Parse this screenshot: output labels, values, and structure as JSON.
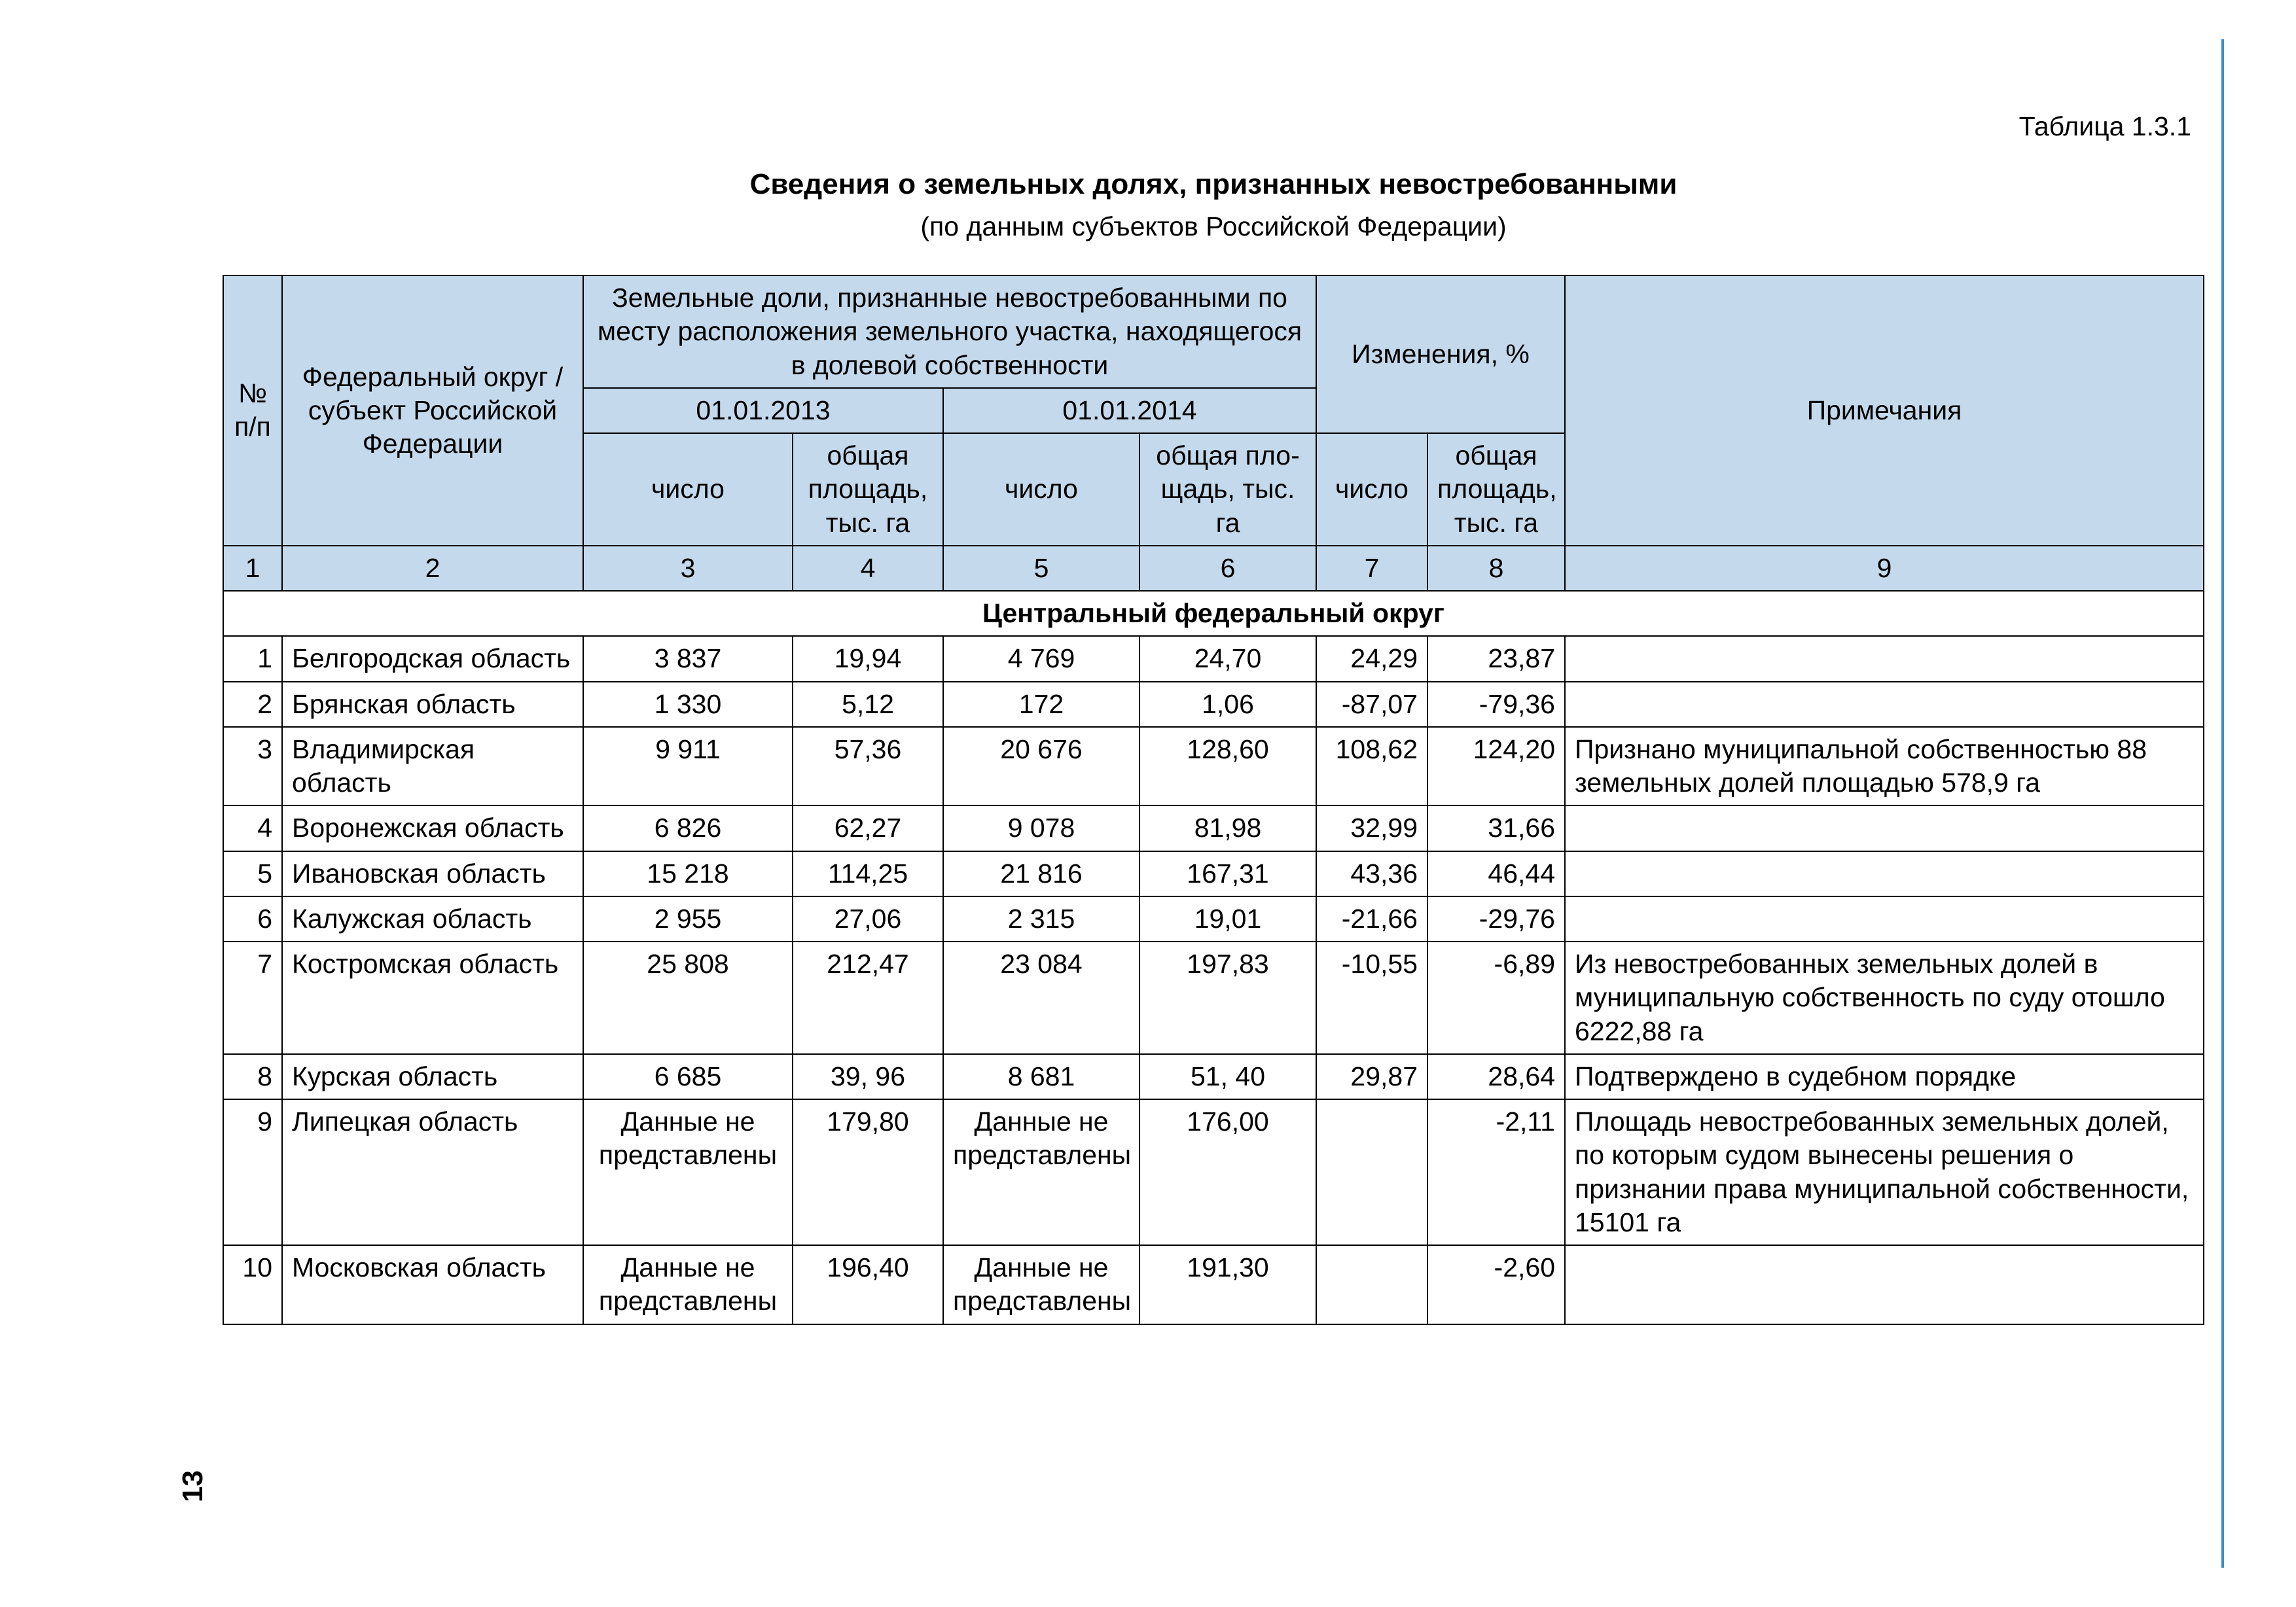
{
  "page_number": "13",
  "table_number_label": "Таблица 1.3.1",
  "title": "Сведения о земельных долях, признанных невостребованными",
  "subtitle": "(по данным субъектов Российской Федерации)",
  "colors": {
    "header_bg": "#c4daec",
    "border": "#000000",
    "text": "#000000",
    "accent_rule": "#3a8fc8",
    "page_bg": "#ffffff"
  },
  "typography": {
    "body_font_size_pt": 18,
    "title_font_size_pt": 19,
    "font_family": "Arial"
  },
  "header": {
    "col_no": "№ п/п",
    "col_region": "Федеральный округ / субъект Российской Федерации",
    "col_shares_group": "Земельные доли, признанные невостребованными по месту расположения земельного участка, находящегося в долевой собственности",
    "col_date_2013": "01.01.2013",
    "col_date_2014": "01.01.2014",
    "col_changes": "Изменения, %",
    "col_notes": "Примечания",
    "sub_count": "число",
    "sub_area": "общая пло­щадь, тыс. га",
    "sub_area2": "общая площадь, тыс. га"
  },
  "column_numbers": [
    "1",
    "2",
    "3",
    "4",
    "5",
    "6",
    "7",
    "8",
    "9"
  ],
  "section_title": "Центральный федеральный округ",
  "rows": [
    {
      "n": "1",
      "region": "Белгородская область",
      "c3": "3 837",
      "c4": "19,94",
      "c5": "4 769",
      "c6": "24,70",
      "c7": "24,29",
      "c8": "23,87",
      "note": ""
    },
    {
      "n": "2",
      "region": "Брянская область",
      "c3": "1 330",
      "c4": "5,12",
      "c5": "172",
      "c6": "1,06",
      "c7": "-87,07",
      "c8": "-79,36",
      "note": ""
    },
    {
      "n": "3",
      "region": "Владимирская область",
      "c3": "9 911",
      "c4": "57,36",
      "c5": "20 676",
      "c6": "128,60",
      "c7": "108,62",
      "c8": "124,20",
      "note": "Признано муниципальной собственностью 88 земель­ных долей площадью 578,9 га"
    },
    {
      "n": "4",
      "region": "Воронежская область",
      "c3": "6 826",
      "c4": "62,27",
      "c5": "9 078",
      "c6": "81,98",
      "c7": "32,99",
      "c8": "31,66",
      "note": ""
    },
    {
      "n": "5",
      "region": "Ивановская область",
      "c3": "15 218",
      "c4": "114,25",
      "c5": "21 816",
      "c6": "167,31",
      "c7": "43,36",
      "c8": "46,44",
      "note": ""
    },
    {
      "n": "6",
      "region": "Калужская область",
      "c3": "2 955",
      "c4": "27,06",
      "c5": "2 315",
      "c6": "19,01",
      "c7": "-21,66",
      "c8": "-29,76",
      "note": ""
    },
    {
      "n": "7",
      "region": "Костромская область",
      "c3": "25 808",
      "c4": "212,47",
      "c5": "23 084",
      "c6": "197,83",
      "c7": "-10,55",
      "c8": "-6,89",
      "note": "Из невостребованных зе­мельных долей в муници­пальную собственность по суду отошло 6222,88 га"
    },
    {
      "n": "8",
      "region": "Курская область",
      "c3": "6 685",
      "c4": "39, 96",
      "c5": "8 681",
      "c6": "51, 40",
      "c7": "29,87",
      "c8": "28,64",
      "note": "Подтверждено в судебном порядке"
    },
    {
      "n": "9",
      "region": "Липецкая область",
      "c3": "Данные не представлены",
      "c4": "179,80",
      "c5": "Данные не представлены",
      "c6": "176,00",
      "c7": "",
      "c8": "-2,11",
      "note": "Площадь невостребованных земельных долей, по кото­рым судом вынесены реше­ния о признании права муни­ципальной собственности, 15101  га"
    },
    {
      "n": "10",
      "region": "Московская область",
      "c3": "Данные не представлены",
      "c4": "196,40",
      "c5": "Данные не представлены",
      "c6": "191,30",
      "c7": "",
      "c8": "-2,60",
      "note": ""
    }
  ]
}
